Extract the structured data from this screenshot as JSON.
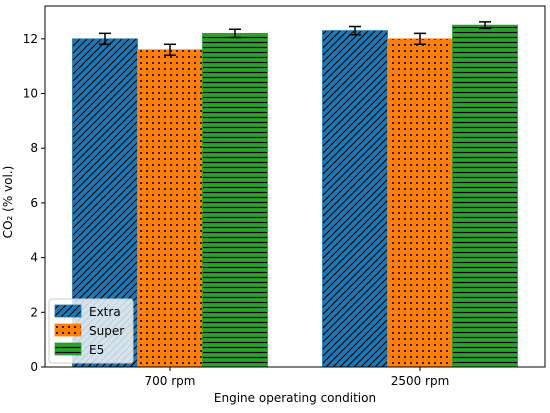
{
  "chart_data": {
    "type": "bar",
    "categories": [
      "700 rpm",
      "2500 rpm"
    ],
    "xlabel": "Engine operating condition",
    "ylabel": "CO₂ (% vol.)",
    "ylim": [
      0,
      13.2
    ],
    "yticks": [
      0,
      2,
      4,
      6,
      8,
      10,
      12
    ],
    "grid": false,
    "legend_position": "lower-left",
    "series": [
      {
        "name": "Extra",
        "color": "#1f77b4",
        "hatch": "diagonal",
        "values": [
          12.0,
          12.3
        ],
        "errors": [
          0.2,
          0.15
        ]
      },
      {
        "name": "Super",
        "color": "#ff7f0e",
        "hatch": "dots",
        "values": [
          11.6,
          12.0
        ],
        "errors": [
          0.2,
          0.2
        ]
      },
      {
        "name": "E5",
        "color": "#2ca02c",
        "hatch": "horizontal",
        "values": [
          12.2,
          12.5
        ],
        "errors": [
          0.15,
          0.12
        ]
      }
    ]
  }
}
